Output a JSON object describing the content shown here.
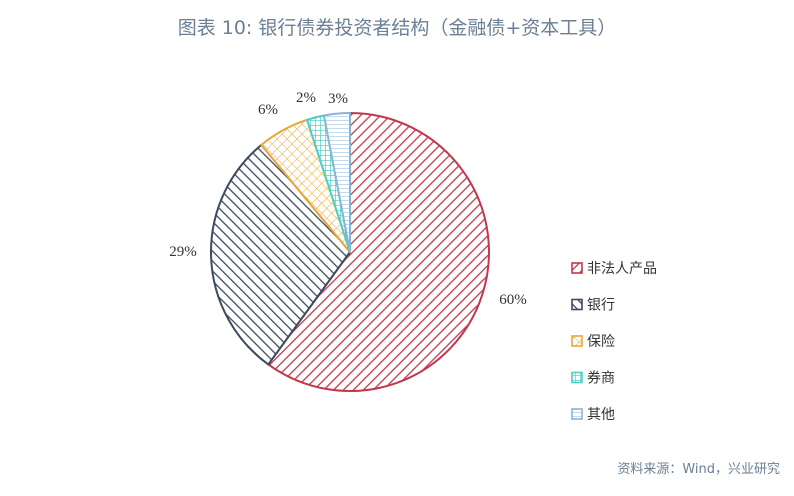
{
  "title": "图表 10: 银行债券投资者结构（金融债+资本工具）",
  "source": "资料来源：Wind，兴业研究",
  "colors": {
    "title": "#6b7f95",
    "text": "#333333"
  },
  "chart_data": {
    "type": "pie",
    "title": "图表 10: 银行债券投资者结构（金融债+资本工具）",
    "legend_position": "right",
    "start_angle": "12 o'clock",
    "direction": "clockwise",
    "series": [
      {
        "name": "非法人产品",
        "value": 60,
        "label": "60%",
        "color": "#c0394b",
        "pattern": "diagonal-hatch-down"
      },
      {
        "name": "银行",
        "value": 29,
        "label": "29%",
        "color": "#3d4a5f",
        "pattern": "diagonal-hatch-up"
      },
      {
        "name": "保险",
        "value": 6,
        "label": "6%",
        "color": "#e8a838",
        "pattern": "crosshatch"
      },
      {
        "name": "券商",
        "value": 2,
        "label": "2%",
        "color": "#4ecdc4",
        "pattern": "grid"
      },
      {
        "name": "其他",
        "value": 3,
        "label": "3%",
        "color": "#8ab4d6",
        "pattern": "horizontal-lines"
      }
    ]
  }
}
